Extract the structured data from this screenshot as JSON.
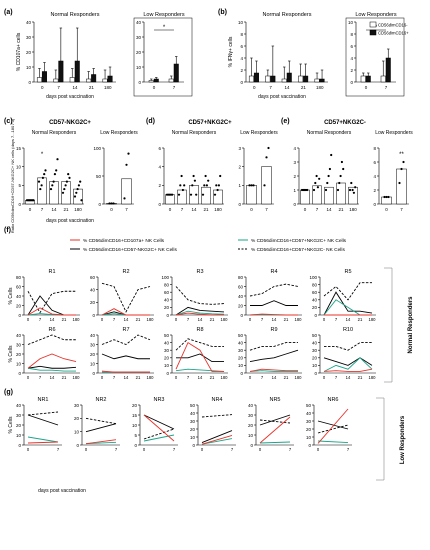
{
  "panel_letters": [
    "(a)",
    "(b)",
    "(c)",
    "(d)",
    "(e)",
    "(f)",
    "(g)"
  ],
  "common": {
    "days_label": "days post vaccination",
    "normal": "Normal Responders",
    "low": "Low Responders",
    "pct_cells": "% Cells"
  },
  "colors": {
    "black": "#000000",
    "red": "#e8312a",
    "green": "#1aa58a",
    "grey": "#777777"
  },
  "legend_ab": [
    "CD56dimCD16-",
    "CD56dimCD16+"
  ],
  "legend_f": [
    {
      "label": "% CD56dimCD16+CD107a+ NK Cells",
      "color": "#e8312a",
      "dash": false
    },
    {
      "label": "% CD56dimCD16+CD57+NKG2C+ NK Cells",
      "color": "#1aa58a",
      "dash": false
    },
    {
      "label": "% CD56dimCD16+CD57-NKG2C+ NK Cells",
      "color": "#000000",
      "dash": false
    },
    {
      "label": "% CD56dimCD16+CD57+NKG2C- NK Cells",
      "color": "#000000",
      "dash": true
    }
  ],
  "side_labels": {
    "f": "Normal Responders",
    "g": "Low Responders"
  },
  "chart_data": [
    {
      "id": "a",
      "type": "bar",
      "ylabel": "% CD107a+ cells",
      "ylim": [
        0,
        40
      ],
      "yticks": [
        0,
        10,
        20,
        30,
        40
      ],
      "normal": {
        "categories": [
          "0",
          "7",
          "14",
          "21",
          "180"
        ],
        "series": [
          {
            "name": "CD56dimCD16-",
            "values": [
              3,
              2,
              3,
              2,
              2
            ],
            "err": [
              6,
              6,
              6,
              5,
              6
            ]
          },
          {
            "name": "CD56dimCD16+",
            "values": [
              7,
              14,
              14,
              5,
              4
            ],
            "err": [
              6,
              22,
              22,
              4,
              6
            ]
          }
        ]
      },
      "low": {
        "categories": [
          "0",
          "7"
        ],
        "series": [
          {
            "name": "CD56dimCD16-",
            "values": [
              1,
              2
            ],
            "err": [
              1,
              2
            ]
          },
          {
            "name": "CD56dimCD16+",
            "values": [
              2,
              12
            ],
            "err": [
              1,
              5
            ]
          }
        ]
      },
      "annotation": "*"
    },
    {
      "id": "b",
      "type": "bar",
      "ylabel": "% IFNγ+ cells",
      "ylim": [
        0,
        10
      ],
      "yticks": [
        0,
        2,
        4,
        6,
        8,
        10
      ],
      "normal": {
        "categories": [
          "0",
          "7",
          "14",
          "21",
          "180"
        ],
        "series": [
          {
            "name": "CD56dimCD16-",
            "values": [
              1,
              1,
              0.5,
              1,
              0.5
            ],
            "err": [
              3,
              1,
              2,
              2,
              1
            ]
          },
          {
            "name": "CD56dimCD16+",
            "values": [
              1.5,
              1,
              1.5,
              1,
              0.5
            ],
            "err": [
              2,
              5,
              2,
              2,
              1.5
            ]
          }
        ]
      },
      "low": {
        "categories": [
          "0",
          "7"
        ],
        "series": [
          {
            "name": "CD56dimCD16-",
            "values": [
              1,
              1
            ],
            "err": [
              0.5,
              2.5
            ]
          },
          {
            "name": "CD56dimCD16+",
            "values": [
              1,
              4
            ],
            "err": [
              0.5,
              1.5
            ]
          }
        ]
      },
      "annotation": "*"
    },
    {
      "id": "c",
      "type": "scatter",
      "title": "CD57-NKG2C+",
      "ylabel": "Ratio CD56dimCD16+CD57-NKG2C+ NK cells (days 7...180 / 0)",
      "normal": {
        "categories": [
          "0",
          "7",
          "14",
          "21",
          "180"
        ],
        "ylim": [
          0,
          15
        ],
        "yticks": [
          0,
          5,
          10,
          15
        ],
        "bars": [
          1,
          7,
          6,
          6,
          4
        ],
        "points": [
          [
            1,
            1,
            1,
            1,
            1,
            1
          ],
          [
            6,
            4,
            5,
            7,
            8,
            9
          ],
          [
            4,
            5,
            6,
            8,
            9,
            12
          ],
          [
            3,
            4,
            5,
            6,
            8,
            7
          ],
          [
            2,
            3,
            4,
            5,
            6,
            1
          ]
        ],
        "annotation": "*"
      },
      "low": {
        "categories": [
          "0",
          "7"
        ],
        "ylim": [
          0,
          100
        ],
        "yticks": [
          0,
          50,
          100
        ],
        "bars": [
          1,
          45
        ],
        "points": [
          [
            1,
            1,
            1
          ],
          [
            10,
            70,
            90
          ]
        ]
      }
    },
    {
      "id": "d",
      "type": "scatter",
      "title": "CD57+NKG2C+",
      "normal": {
        "categories": [
          "0",
          "7",
          "14",
          "21",
          "180"
        ],
        "ylim": [
          0,
          6
        ],
        "yticks": [
          0,
          2,
          4,
          6
        ],
        "bars": [
          1,
          1.5,
          2,
          1.8,
          1.5
        ],
        "points": [
          [
            1,
            1,
            1,
            1,
            1
          ],
          [
            1,
            2,
            3,
            1.5,
            2
          ],
          [
            1,
            2,
            3,
            2.5,
            1
          ],
          [
            1,
            2,
            3,
            2,
            2.5
          ],
          [
            1,
            2,
            1.5,
            2,
            3
          ]
        ]
      },
      "low": {
        "categories": [
          "0",
          "7"
        ],
        "ylim": [
          0,
          3
        ],
        "yticks": [
          0,
          1,
          2,
          3
        ],
        "bars": [
          1,
          2
        ],
        "points": [
          [
            1,
            1,
            1
          ],
          [
            1,
            2.5,
            3
          ]
        ]
      }
    },
    {
      "id": "e",
      "type": "scatter",
      "title": "CD57+NKG2C-",
      "normal": {
        "categories": [
          "0",
          "7",
          "14",
          "21",
          "180"
        ],
        "ylim": [
          0,
          4
        ],
        "yticks": [
          0,
          1,
          2,
          3,
          4
        ],
        "bars": [
          1,
          1.3,
          1.2,
          1.5,
          1.2
        ],
        "points": [
          [
            1,
            1,
            1,
            1,
            1
          ],
          [
            1,
            1.5,
            2,
            1.2,
            1.8
          ],
          [
            1,
            1.5,
            2,
            2.5,
            3.5
          ],
          [
            1,
            1.5,
            2,
            3,
            2.5
          ],
          [
            1,
            1.5,
            1,
            0.8,
            1.2
          ]
        ]
      },
      "low": {
        "categories": [
          "0",
          "7"
        ],
        "ylim": [
          0,
          8
        ],
        "yticks": [
          0,
          2,
          4,
          6,
          8
        ],
        "bars": [
          1,
          5
        ],
        "points": [
          [
            1,
            1,
            1
          ],
          [
            3,
            5,
            6
          ]
        ],
        "annotation": "**"
      }
    },
    {
      "id": "f",
      "type": "line",
      "x": [
        "0",
        "7",
        "14",
        "21",
        "180"
      ],
      "panels": [
        {
          "name": "R1",
          "ylim": [
            0,
            80
          ],
          "yticks": [
            0,
            20,
            40,
            60,
            80
          ],
          "red": [
            0,
            15,
            2,
            0,
            0
          ],
          "green": [
            0,
            3,
            1,
            0,
            0
          ],
          "black": [
            0,
            40,
            10,
            0,
            0
          ],
          "dash": [
            50,
            5,
            45,
            50,
            50
          ]
        },
        {
          "name": "R2",
          "ylim": [
            0,
            60
          ],
          "yticks": [
            0,
            20,
            40,
            60
          ],
          "red": [
            0,
            10,
            0,
            0,
            0
          ],
          "green": [
            0,
            2,
            0,
            0,
            0
          ],
          "black": [
            0,
            5,
            0,
            0,
            0
          ],
          "dash": [
            50,
            45,
            5,
            40,
            45
          ]
        },
        {
          "name": "R3",
          "ylim": [
            0,
            100
          ],
          "yticks": [
            0,
            20,
            40,
            60,
            80,
            100
          ],
          "red": [
            0,
            5,
            2,
            0,
            0
          ],
          "green": [
            0,
            10,
            5,
            3,
            2
          ],
          "black": [
            0,
            20,
            12,
            10,
            8
          ],
          "dash": [
            75,
            40,
            30,
            28,
            30
          ]
        },
        {
          "name": "R4",
          "ylim": [
            0,
            80
          ],
          "yticks": [
            0,
            20,
            40,
            60,
            80
          ],
          "red": [
            0,
            2,
            1,
            0,
            0
          ],
          "green": [
            0,
            1,
            0,
            0,
            0
          ],
          "black": [
            20,
            20,
            30,
            20,
            20
          ],
          "dash": [
            40,
            45,
            60,
            65,
            60
          ]
        },
        {
          "name": "R5",
          "ylim": [
            0,
            100
          ],
          "yticks": [
            0,
            20,
            40,
            60,
            80,
            100
          ],
          "red": [
            0,
            0,
            0,
            0,
            0
          ],
          "green": [
            0,
            40,
            20,
            0,
            0
          ],
          "black": [
            0,
            60,
            10,
            10,
            5
          ],
          "dash": [
            50,
            75,
            40,
            85,
            85
          ]
        },
        {
          "name": "R6",
          "ylim": [
            0,
            40
          ],
          "yticks": [
            0,
            10,
            20,
            30,
            40
          ],
          "red": [
            5,
            15,
            20,
            15,
            12
          ],
          "green": [
            5,
            3,
            3,
            2,
            2
          ],
          "black": [
            5,
            7,
            5,
            5,
            6
          ],
          "dash": [
            30,
            35,
            40,
            35,
            35
          ]
        },
        {
          "name": "R7",
          "ylim": [
            0,
            40
          ],
          "yticks": [
            0,
            10,
            20,
            30,
            40
          ],
          "red": [
            2,
            1,
            1,
            1,
            1
          ],
          "green": [
            1,
            1,
            1,
            1,
            1
          ],
          "black": [
            20,
            15,
            18,
            15,
            15
          ],
          "dash": [
            30,
            35,
            30,
            40,
            35
          ]
        },
        {
          "name": "R8",
          "ylim": [
            0,
            50
          ],
          "yticks": [
            0,
            10,
            20,
            30,
            40,
            50
          ],
          "red": [
            5,
            40,
            30,
            2,
            2
          ],
          "green": [
            3,
            5,
            4,
            3,
            2
          ],
          "black": [
            20,
            20,
            25,
            15,
            15
          ],
          "dash": [
            30,
            45,
            40,
            35,
            35
          ]
        },
        {
          "name": "R9",
          "ylim": [
            0,
            50
          ],
          "yticks": [
            0,
            10,
            20,
            30,
            40,
            50
          ],
          "red": [
            2,
            5,
            4,
            3,
            3
          ],
          "green": [
            2,
            3,
            2,
            2,
            2
          ],
          "black": [
            15,
            18,
            20,
            25,
            30
          ],
          "dash": [
            30,
            35,
            35,
            40,
            40
          ]
        },
        {
          "name": "R10",
          "ylim": [
            0,
            50
          ],
          "yticks": [
            0,
            10,
            20,
            30,
            40,
            50
          ],
          "red": [
            2,
            3,
            2,
            2,
            5
          ],
          "green": [
            2,
            10,
            5,
            20,
            5
          ],
          "black": [
            20,
            15,
            10,
            20,
            10
          ],
          "dash": [
            35,
            35,
            30,
            40,
            40
          ]
        }
      ]
    },
    {
      "id": "g",
      "type": "line",
      "x": [
        "0",
        "7"
      ],
      "panels": [
        {
          "name": "NR1",
          "ylim": [
            0,
            40
          ],
          "yticks": [
            0,
            10,
            20,
            30,
            40
          ],
          "red": [
            2,
            3
          ],
          "green": [
            8,
            3
          ],
          "black": [
            30,
            20
          ],
          "dash": [
            30,
            33
          ]
        },
        {
          "name": "NR2",
          "ylim": [
            0,
            30
          ],
          "yticks": [
            0,
            10,
            20,
            30
          ],
          "red": [
            1,
            4
          ],
          "green": [
            1,
            2
          ],
          "black": [
            10,
            16
          ],
          "dash": [
            20,
            16
          ]
        },
        {
          "name": "NR3",
          "ylim": [
            0,
            20
          ],
          "yticks": [
            0,
            5,
            10,
            15,
            20
          ],
          "red": [
            15,
            2
          ],
          "green": [
            2,
            5
          ],
          "black": [
            15,
            8
          ],
          "dash": [
            3,
            8
          ]
        },
        {
          "name": "NR4",
          "ylim": [
            0,
            50
          ],
          "yticks": [
            0,
            10,
            20,
            30,
            40,
            50
          ],
          "red": [
            1,
            12
          ],
          "green": [
            1,
            8
          ],
          "black": [
            3,
            18
          ],
          "dash": [
            35,
            38
          ]
        },
        {
          "name": "NR5",
          "ylim": [
            0,
            40
          ],
          "yticks": [
            0,
            10,
            20,
            30,
            40
          ],
          "red": [
            2,
            28
          ],
          "green": [
            2,
            3
          ],
          "black": [
            20,
            30
          ],
          "dash": [
            25,
            22
          ]
        },
        {
          "name": "NR6",
          "ylim": [
            0,
            50
          ],
          "yticks": [
            0,
            10,
            20,
            30,
            40,
            50
          ],
          "red": [
            2,
            45
          ],
          "green": [
            5,
            3
          ],
          "black": [
            30,
            20
          ],
          "dash": [
            15,
            25
          ]
        }
      ]
    }
  ]
}
